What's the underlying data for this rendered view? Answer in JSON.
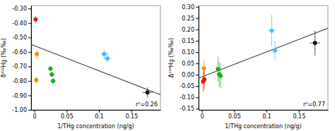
{
  "chart_data": [
    {
      "type": "scatter",
      "x_label": "1/THg concentration (ng/g)",
      "y_label": "δ²⁰²Hg (‰‰)",
      "annotation": "r²=0.26",
      "xlim": [
        -0.005,
        0.195
      ],
      "ylim": [
        -1.0,
        -0.28
      ],
      "xticks": [
        0,
        0.05,
        0.1,
        0.15
      ],
      "yticks": [
        {
          "value": -1.0,
          "label": "-1.00"
        },
        {
          "value": -0.9,
          "label": "-0.90"
        },
        {
          "value": -0.8,
          "label": "-0.80"
        },
        {
          "value": -0.7,
          "label": "-0.70"
        },
        {
          "value": -0.6,
          "label": "-0.60"
        },
        {
          "value": -0.5,
          "label": "-0.50"
        },
        {
          "value": -0.4,
          "label": "-0.40"
        },
        {
          "value": -0.3,
          "label": "-0.30"
        }
      ],
      "series": [
        {
          "type": "line",
          "color": "#555555",
          "x": [
            -0.005,
            0.195
          ],
          "values": [
            -0.548,
            -0.895
          ]
        },
        {
          "type": "scatter",
          "x": [
            0.002,
            0.004,
            0.003,
            0.025,
            0.027,
            0.029,
            0.108,
            0.113,
            0.175
          ],
          "values": [
            -0.375,
            -0.615,
            -0.795,
            -0.715,
            -0.755,
            -0.8,
            -0.615,
            -0.645,
            -0.88
          ],
          "x_errors": [
            0.003,
            0.003,
            0.003,
            0.004,
            0.004,
            0.004,
            0.006,
            0.006,
            0.008
          ],
          "errors": [
            0.025,
            0.035,
            0.025,
            0.02,
            0.02,
            0.02,
            0.03,
            0.03,
            0.035
          ],
          "colors": [
            "#d42000",
            "#e8960a",
            "#e8960a",
            "#22aa22",
            "#22aa22",
            "#22aa22",
            "#4db8ff",
            "#4db8ff",
            "#111111"
          ]
        }
      ]
    },
    {
      "type": "scatter",
      "x_label": "1/THg concentration (ng/g)",
      "y_label": "Δ¹⁹⁹Hg (‰‰)",
      "annotation": "r²=0.77",
      "xlim": [
        -0.005,
        0.195
      ],
      "ylim": [
        -0.155,
        0.305
      ],
      "xticks": [
        0,
        0.05,
        0.1,
        0.15
      ],
      "yticks": [
        {
          "value": -0.15,
          "label": "-0.15"
        },
        {
          "value": -0.1,
          "label": "-0.10"
        },
        {
          "value": -0.05,
          "label": "-0.05"
        },
        {
          "value": 0.0,
          "label": "0.00"
        },
        {
          "value": 0.05,
          "label": "0.05"
        },
        {
          "value": 0.1,
          "label": "0.10"
        },
        {
          "value": 0.15,
          "label": "0.15"
        },
        {
          "value": 0.2,
          "label": "0.20"
        },
        {
          "value": 0.25,
          "label": "0.25"
        },
        {
          "value": 0.3,
          "label": "0.30"
        }
      ],
      "series": [
        {
          "type": "line",
          "color": "#555555",
          "x": [
            -0.005,
            0.195
          ],
          "values": [
            -0.015,
            0.205
          ]
        },
        {
          "type": "scatter",
          "x": [
            0.002,
            0.004,
            0.003,
            0.025,
            0.027,
            0.029,
            0.108,
            0.113,
            0.175
          ],
          "values": [
            -0.03,
            -0.02,
            0.028,
            0.025,
            0.002,
            -0.005,
            0.195,
            0.107,
            0.14
          ],
          "x_errors": [
            0.003,
            0.003,
            0.003,
            0.004,
            0.004,
            0.004,
            0.006,
            0.006,
            0.008
          ],
          "errors": [
            0.045,
            0.045,
            0.04,
            0.055,
            0.055,
            0.055,
            0.07,
            0.04,
            0.055
          ],
          "colors": [
            "#d42000",
            "#d42000",
            "#e8960a",
            "#22aa22",
            "#22aa22",
            "#22aa22",
            "#4db8ff",
            "#4db8ff",
            "#111111"
          ]
        }
      ]
    }
  ]
}
